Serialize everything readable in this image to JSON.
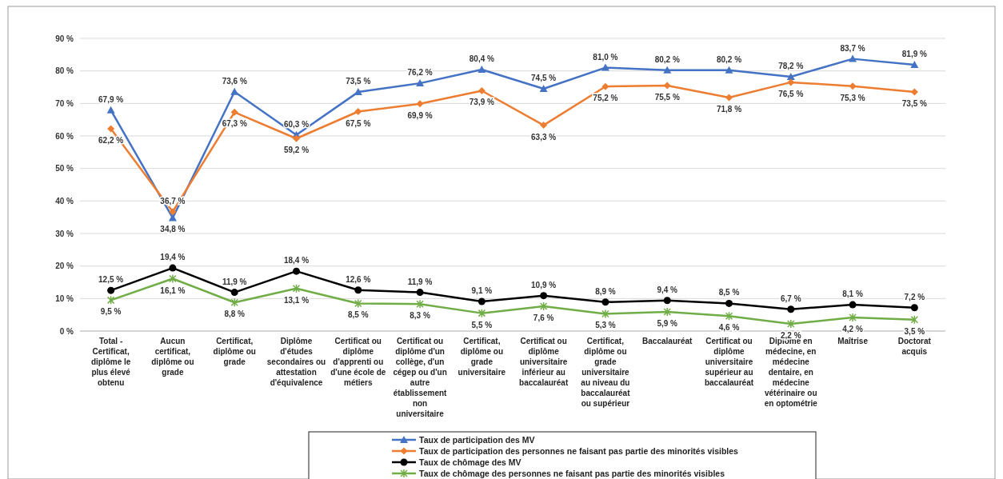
{
  "chart_data": {
    "type": "line",
    "categories": [
      "Total - Certificat, diplôme le plus élevé obtenu",
      "Aucun certificat, diplôme ou grade",
      "Certificat, diplôme ou grade",
      "Diplôme d'études secondaires ou attestation d'équivalence",
      "Certificat ou diplôme d'apprenti ou d'une école de métiers",
      "Certificat ou diplôme d'un collège, d'un cégep ou d'un autre établissement non universitaire",
      "Certificat, diplôme ou grade universitaire",
      "Certificat ou diplôme universitaire inférieur au baccalauréat",
      "Certificat, diplôme ou grade universitaire au niveau du baccalauréat ou supérieur",
      "Baccalauréat",
      "Certificat ou diplôme universitaire supérieur au baccalauréat",
      "Diplôme en médecine, en médecine dentaire, en médecine vétérinaire ou en optométrie",
      "Maîtrise",
      "Doctorat acquis"
    ],
    "series": [
      {
        "name": "Taux de participation des MV",
        "color": "#4472c4",
        "marker": "triangle",
        "values": [
          67.9,
          34.8,
          73.6,
          60.3,
          73.5,
          76.2,
          80.4,
          74.5,
          81.0,
          80.2,
          80.2,
          78.2,
          83.7,
          81.9
        ],
        "value_labels": [
          "67,9 %",
          "34,8 %",
          "73,6 %",
          "60,3 %",
          "73,5 %",
          "76,2 %",
          "80,4 %",
          "74,5 %",
          "81,0 %",
          "80,2 %",
          "80,2 %",
          "78,2 %",
          "83,7 %",
          "81,9 %"
        ]
      },
      {
        "name": "Taux de participation des personnes ne faisant pas partie des minorités visibles",
        "color": "#ed7d31",
        "marker": "diamond",
        "values": [
          62.2,
          36.7,
          67.3,
          59.2,
          67.5,
          69.9,
          73.9,
          63.3,
          75.2,
          75.5,
          71.8,
          76.5,
          75.3,
          73.5
        ],
        "value_labels": [
          "62,2 %",
          "36,7 %",
          "67,3 %",
          "59,2 %",
          "67,5 %",
          "69,9 %",
          "73,9 %",
          "63,3 %",
          "75,2 %",
          "75,5 %",
          "71,8 %",
          "76,5 %",
          "75,3 %",
          "73,5 %"
        ]
      },
      {
        "name": "Taux de chômage des MV",
        "color": "#000000",
        "marker": "circle",
        "values": [
          12.5,
          19.4,
          11.9,
          18.4,
          12.6,
          11.9,
          9.1,
          10.9,
          8.9,
          9.4,
          8.5,
          6.7,
          8.1,
          7.2
        ],
        "value_labels": [
          "12,5 %",
          "19,4 %",
          "11,9 %",
          "18,4 %",
          "12,6 %",
          "11,9 %",
          "9,1 %",
          "10,9 %",
          "8,9 %",
          "9,4 %",
          "8,5 %",
          "6,7 %",
          "8,1 %",
          "7,2 %"
        ]
      },
      {
        "name": "Taux de chômage des personnes ne faisant pas partie des minorités visibles",
        "color": "#70ad47",
        "marker": "cross",
        "values": [
          9.5,
          16.1,
          8.8,
          13.1,
          8.5,
          8.3,
          5.5,
          7.6,
          5.3,
          5.9,
          4.6,
          2.2,
          4.2,
          3.5
        ],
        "value_labels": [
          "9,5 %",
          "16,1 %",
          "8,8 %",
          "13,1 %",
          "8,5 %",
          "8,3 %",
          "5,5 %",
          "7,6 %",
          "5,3 %",
          "5,9 %",
          "4,6 %",
          "2,2 %",
          "4,2 %",
          "3,5 %"
        ]
      }
    ],
    "ylim": [
      0,
      90
    ],
    "yticks": [
      {
        "value": 0,
        "label": "0 %"
      },
      {
        "value": 10,
        "label": "10 %"
      },
      {
        "value": 20,
        "label": "20 %"
      },
      {
        "value": 30,
        "label": "30 %"
      },
      {
        "value": 40,
        "label": "40 %"
      },
      {
        "value": 50,
        "label": "50 %"
      },
      {
        "value": 60,
        "label": "60 %"
      },
      {
        "value": 70,
        "label": "70 %"
      },
      {
        "value": 80,
        "label": "80 %"
      },
      {
        "value": 90,
        "label": "90 %"
      }
    ],
    "grid": "y",
    "legend": "bottom"
  }
}
